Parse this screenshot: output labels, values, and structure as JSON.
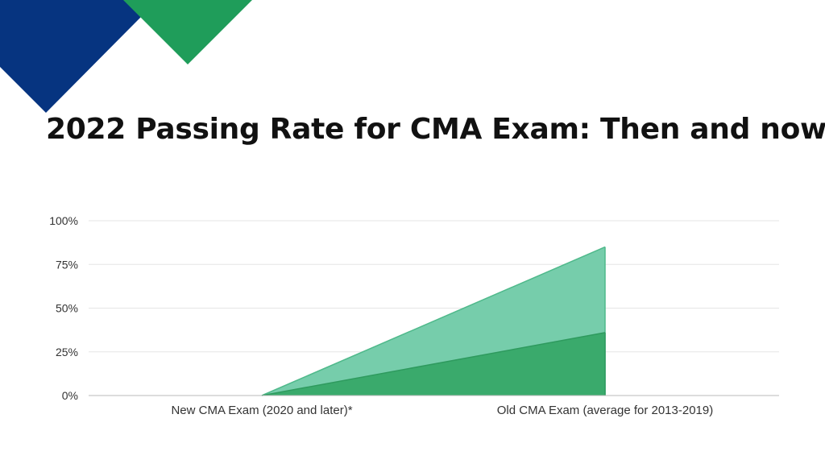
{
  "page": {
    "title": "2022 Passing Rate for CMA Exam: Then and now"
  },
  "colors": {
    "deco_blue": "#063480",
    "deco_green": "#1f9d5a",
    "series_light": "#76cdab",
    "series_dark": "#3aaa6c",
    "grid": "#e6e6e6",
    "axis": "#bbbbbb"
  },
  "chart_data": {
    "type": "area",
    "title": "2022 Passing Rate for CMA Exam: Then and now",
    "xlabel": "",
    "ylabel": "",
    "categories": [
      "New CMA Exam (2020 and later)*",
      "Old CMA Exam (average for 2013-2019)"
    ],
    "ylim": [
      0,
      1
    ],
    "yticks": [
      0,
      0.25,
      0.5,
      0.75,
      1
    ],
    "ytick_labels": [
      "0%",
      "25%",
      "50%",
      "75%",
      "100%"
    ],
    "grid": true,
    "legend": "none",
    "series": [
      {
        "values": [
          0,
          0.85
        ],
        "color": "#76cdab"
      },
      {
        "values": [
          0,
          0.36
        ],
        "color": "#3aaa6c"
      }
    ]
  }
}
